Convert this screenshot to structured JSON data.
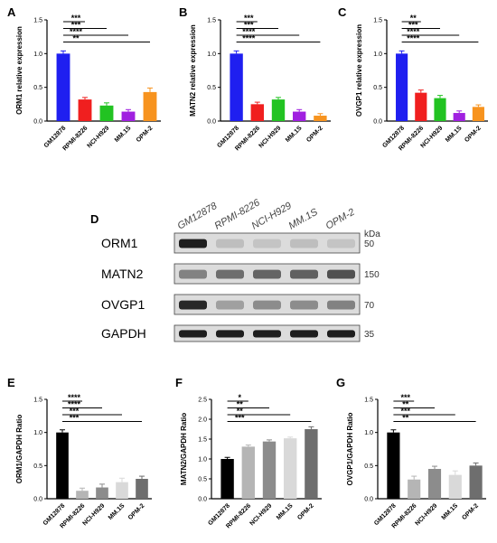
{
  "chart_data": [
    {
      "panel": "A",
      "type": "bar",
      "categories": [
        "GM12878",
        "RPMI-8226",
        "NCI-H929",
        "MM.1S",
        "OPM-2"
      ],
      "values": [
        1.0,
        0.32,
        0.23,
        0.14,
        0.43
      ],
      "errors": [
        0.04,
        0.03,
        0.04,
        0.03,
        0.06
      ],
      "colors": [
        "#1f1ff0",
        "#f01f1f",
        "#22c322",
        "#a020e0",
        "#f7931e"
      ],
      "ylabel": "ORM1 relative expression",
      "ylim": [
        0,
        1.5
      ],
      "yticks": [
        "0.0",
        "0.5",
        "1.0",
        "1.5"
      ],
      "brackets": [
        {
          "to": 1,
          "label": "***"
        },
        {
          "to": 2,
          "label": "***"
        },
        {
          "to": 3,
          "label": "****"
        },
        {
          "to": 4,
          "label": "**"
        }
      ]
    },
    {
      "panel": "B",
      "type": "bar",
      "categories": [
        "GM12878",
        "RPMI-8226",
        "NCI-H929",
        "MM.1S",
        "OPM-2"
      ],
      "values": [
        1.0,
        0.25,
        0.32,
        0.14,
        0.08
      ],
      "errors": [
        0.04,
        0.03,
        0.03,
        0.03,
        0.03
      ],
      "colors": [
        "#1f1ff0",
        "#f01f1f",
        "#22c322",
        "#a020e0",
        "#f7931e"
      ],
      "ylabel": "MATN2 relative expression",
      "ylim": [
        0,
        1.5
      ],
      "yticks": [
        "0.0",
        "0.5",
        "1.0",
        "1.5"
      ],
      "brackets": [
        {
          "to": 1,
          "label": "***"
        },
        {
          "to": 2,
          "label": "***"
        },
        {
          "to": 3,
          "label": "****"
        },
        {
          "to": 4,
          "label": "****"
        }
      ]
    },
    {
      "panel": "C",
      "type": "bar",
      "categories": [
        "GM12878",
        "RPMI-8226",
        "NCI-H929",
        "MM.1S",
        "OPM-2"
      ],
      "values": [
        1.0,
        0.42,
        0.34,
        0.12,
        0.21
      ],
      "errors": [
        0.04,
        0.04,
        0.04,
        0.03,
        0.03
      ],
      "colors": [
        "#1f1ff0",
        "#f01f1f",
        "#22c322",
        "#a020e0",
        "#f7931e"
      ],
      "ylabel": "OVGP1 relative expression",
      "ylim": [
        0,
        1.5
      ],
      "yticks": [
        "0.0",
        "0.5",
        "1.0",
        "1.5"
      ],
      "brackets": [
        {
          "to": 1,
          "label": "**"
        },
        {
          "to": 2,
          "label": "***"
        },
        {
          "to": 3,
          "label": "****"
        },
        {
          "to": 4,
          "label": "****"
        }
      ]
    },
    {
      "panel": "E",
      "type": "bar",
      "categories": [
        "GM12878",
        "RPMI-8226",
        "NCI-H929",
        "MM.1S",
        "OPM-2"
      ],
      "values": [
        1.0,
        0.12,
        0.17,
        0.25,
        0.3
      ],
      "errors": [
        0.04,
        0.04,
        0.05,
        0.06,
        0.04
      ],
      "colors": [
        "#000000",
        "#b5b5b5",
        "#8c8c8c",
        "#d9d9d9",
        "#6e6e6e"
      ],
      "ylabel": "ORM1/GAPDH Ratio",
      "ylim": [
        0,
        1.5
      ],
      "yticks": [
        "0.0",
        "0.5",
        "1.0",
        "1.5"
      ],
      "brackets": [
        {
          "to": 1,
          "label": "****"
        },
        {
          "to": 2,
          "label": "****"
        },
        {
          "to": 3,
          "label": "***"
        },
        {
          "to": 4,
          "label": "***"
        }
      ]
    },
    {
      "panel": "F",
      "type": "bar",
      "categories": [
        "GM12878",
        "RPMI-8226",
        "NCI-H929",
        "MM.1S",
        "OPM-2"
      ],
      "values": [
        1.0,
        1.31,
        1.44,
        1.52,
        1.75
      ],
      "errors": [
        0.04,
        0.04,
        0.04,
        0.03,
        0.06
      ],
      "colors": [
        "#000000",
        "#b5b5b5",
        "#8c8c8c",
        "#d9d9d9",
        "#6e6e6e"
      ],
      "ylabel": "MATN2/GAPDH Ratio",
      "ylim": [
        0,
        2.5
      ],
      "yticks": [
        "0.0",
        "0.5",
        "1.0",
        "1.5",
        "2.0",
        "2.5"
      ],
      "brackets": [
        {
          "to": 1,
          "label": "*"
        },
        {
          "to": 2,
          "label": "**"
        },
        {
          "to": 3,
          "label": "**"
        },
        {
          "to": 4,
          "label": "***"
        }
      ]
    },
    {
      "panel": "G",
      "type": "bar",
      "categories": [
        "GM12878",
        "RPMI-8226",
        "NCI-H929",
        "MM.1S",
        "OPM-2"
      ],
      "values": [
        1.0,
        0.29,
        0.45,
        0.36,
        0.5
      ],
      "errors": [
        0.04,
        0.05,
        0.04,
        0.06,
        0.04
      ],
      "colors": [
        "#000000",
        "#b5b5b5",
        "#8c8c8c",
        "#d9d9d9",
        "#6e6e6e"
      ],
      "ylabel": "OVGP1/GAPDH Ratio",
      "ylim": [
        0,
        1.5
      ],
      "yticks": [
        "0.0",
        "0.5",
        "1.0",
        "1.5"
      ],
      "brackets": [
        {
          "to": 1,
          "label": "***"
        },
        {
          "to": 2,
          "label": "**"
        },
        {
          "to": 3,
          "label": "***"
        },
        {
          "to": 4,
          "label": "**"
        }
      ]
    }
  ],
  "blot": {
    "panel": "D",
    "kda_label": "kDa",
    "lanes": [
      "GM12878",
      "RPMI-8226",
      "NCI-H929",
      "MM.1S",
      "OPM-2"
    ],
    "rows": [
      {
        "protein": "ORM1",
        "mw": "50",
        "intensity": [
          0.95,
          0.15,
          0.12,
          0.15,
          0.12
        ]
      },
      {
        "protein": "MATN2",
        "mw": "150",
        "intensity": [
          0.45,
          0.55,
          0.6,
          0.62,
          0.7
        ]
      },
      {
        "protein": "OVGP1",
        "mw": "70",
        "intensity": [
          0.9,
          0.3,
          0.4,
          0.4,
          0.45
        ]
      },
      {
        "protein": "GAPDH",
        "mw": "35",
        "intensity": [
          0.95,
          0.95,
          0.95,
          0.95,
          0.95
        ]
      }
    ]
  }
}
